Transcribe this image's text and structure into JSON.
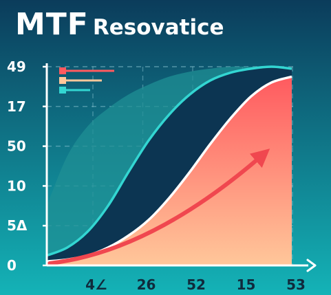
{
  "title": {
    "main": "MTF",
    "sub": "Resovatice"
  },
  "colors": {
    "bg_top": "#0b3c5b",
    "bg_bottom": "#14b3b7",
    "teal_line": "#33d6d2",
    "teal_fill": "#1f8f94",
    "navy_fill": "#0c3552",
    "coral_top": "#ff5a5f",
    "coral_bottom": "#ffc79a",
    "arrow": "#f0474f",
    "grid": "#8fc9d6"
  },
  "chart_data": {
    "type": "area",
    "y_tick_labels": [
      "49",
      "17",
      "50",
      "10",
      "5Δ",
      "0"
    ],
    "x_tick_labels": [
      "4∠",
      "26",
      "52",
      "15",
      "53"
    ],
    "x": [
      0,
      1,
      2,
      3,
      4,
      5,
      6,
      7,
      8,
      9,
      10,
      11,
      12
    ],
    "series": [
      {
        "values": [
          0.3,
          0.55,
          0.7,
          0.79,
          0.86,
          0.91,
          0.95,
          0.975,
          0.99,
          1.0,
          1.0,
          1.0,
          0.99
        ]
      },
      {
        "values": [
          0.05,
          0.09,
          0.17,
          0.3,
          0.47,
          0.63,
          0.76,
          0.86,
          0.93,
          0.97,
          0.99,
          1.0,
          0.99
        ]
      },
      {
        "values": [
          0.02,
          0.03,
          0.05,
          0.09,
          0.15,
          0.23,
          0.34,
          0.47,
          0.61,
          0.74,
          0.85,
          0.92,
          0.95
        ]
      }
    ],
    "legend_series_colors": [
      "#ff5a5f",
      "#ffc79a",
      "#33d6d2"
    ],
    "legend_placement": "top-left",
    "grid": true,
    "annotation": "rising trend arrow"
  }
}
